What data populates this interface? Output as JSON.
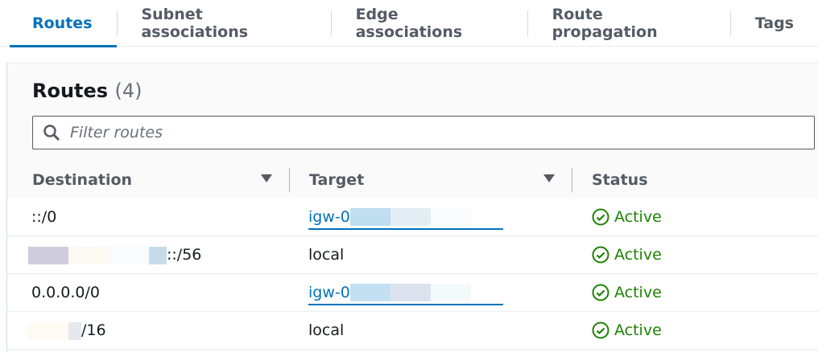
{
  "tabs": [
    {
      "label": "Routes",
      "active": true
    },
    {
      "label": "Subnet associations"
    },
    {
      "label": "Edge associations"
    },
    {
      "label": "Route propagation"
    },
    {
      "label": "Tags"
    }
  ],
  "panel": {
    "title": "Routes",
    "count": "(4)",
    "filter_placeholder": "Filter routes"
  },
  "columns": [
    "Destination",
    "Target",
    "Status"
  ],
  "rows": [
    {
      "destination": "::/0",
      "target": "igw-0",
      "target_link": true,
      "status": "Active"
    },
    {
      "destination": "::/56",
      "target": "local",
      "target_link": false,
      "status": "Active"
    },
    {
      "destination": "0.0.0.0/0",
      "target": "igw-0",
      "target_link": true,
      "status": "Active"
    },
    {
      "destination": "/16",
      "target": "local",
      "target_link": false,
      "status": "Active"
    }
  ],
  "colors": {
    "accent": "#0073bb",
    "success": "#1d8102"
  }
}
